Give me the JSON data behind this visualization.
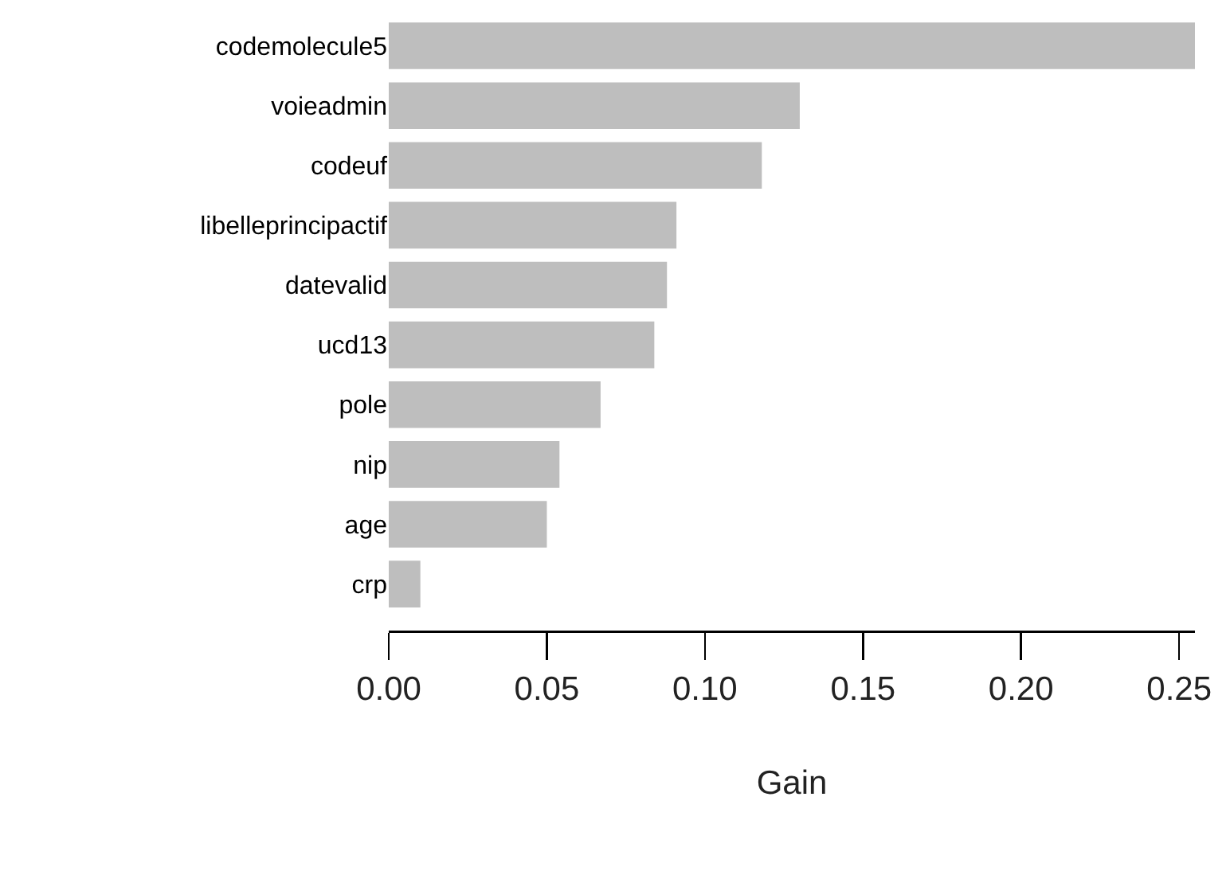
{
  "chart_data": {
    "type": "bar",
    "orientation": "horizontal",
    "xlabel": "Gain",
    "categories": [
      "codemolecule5",
      "voieadmin",
      "codeuf",
      "libelleprincipactif",
      "datevalid",
      "ucd13",
      "pole",
      "nip",
      "age",
      "crp"
    ],
    "values": [
      0.255,
      0.13,
      0.118,
      0.091,
      0.088,
      0.084,
      0.067,
      0.054,
      0.05,
      0.01
    ],
    "color": "#bebebe",
    "xlim": [
      0,
      0.255
    ],
    "xticks": [
      {
        "value": 0,
        "label": "0.00"
      },
      {
        "value": 0.05,
        "label": "0.05"
      },
      {
        "value": 0.1,
        "label": "0.10"
      },
      {
        "value": 0.15,
        "label": "0.15"
      },
      {
        "value": 0.2,
        "label": "0.20"
      },
      {
        "value": 0.25,
        "label": "0.25"
      }
    ],
    "grid": false
  }
}
